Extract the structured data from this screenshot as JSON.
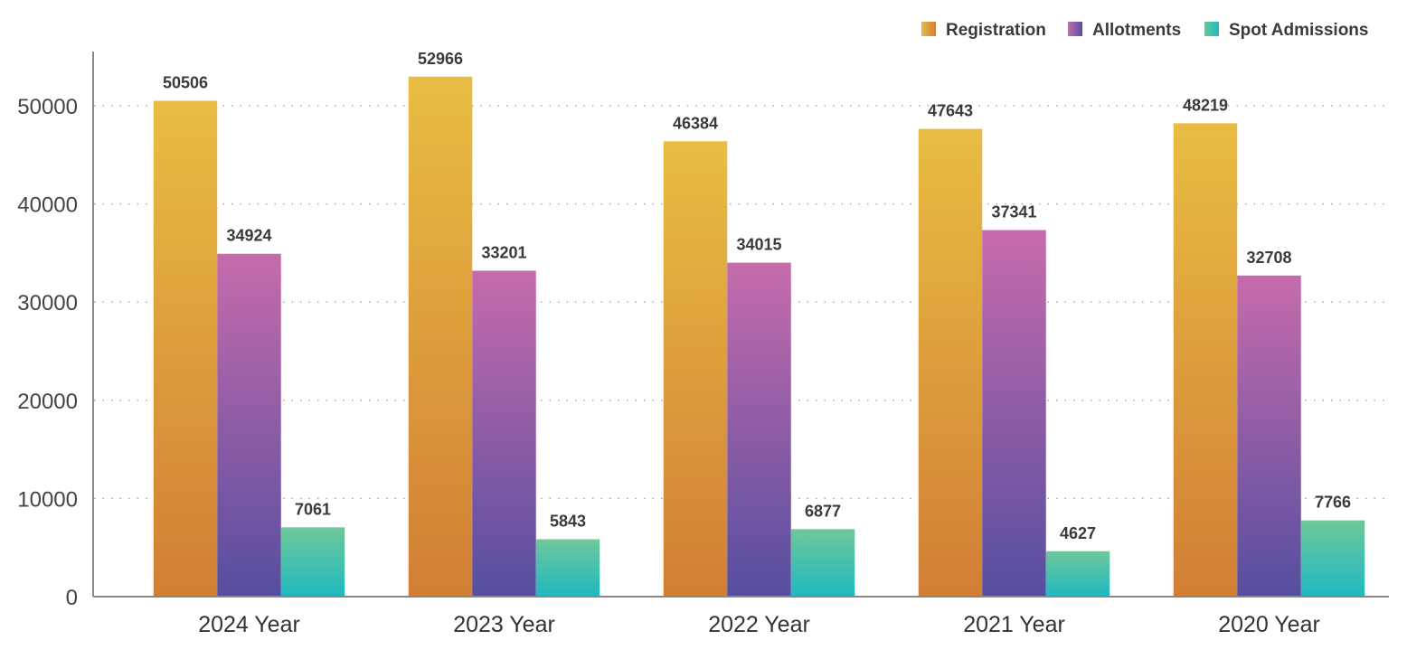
{
  "chart_data": {
    "type": "bar",
    "title": "",
    "xlabel": "",
    "ylabel": "",
    "categories": [
      "2024 Year",
      "2023 Year",
      "2022 Year",
      "2021 Year",
      "2020 Year"
    ],
    "series": [
      {
        "name": "Registration",
        "values": [
          50506,
          52966,
          46384,
          47643,
          48219
        ],
        "color_top": "#e8bd42",
        "color_bottom": "#d27e35"
      },
      {
        "name": "Allotments",
        "values": [
          34924,
          33201,
          34015,
          37341,
          32708
        ],
        "color_top": "#c66bab",
        "color_bottom": "#554ea0"
      },
      {
        "name": "Spot Admissions",
        "values": [
          7061,
          5843,
          6877,
          4627,
          7766
        ],
        "color_top": "#6fc89a",
        "color_bottom": "#1fb8c0"
      }
    ],
    "yticks": [
      "0",
      "10000",
      "20000",
      "30000",
      "40000",
      "50000"
    ],
    "ytick_values": [
      0,
      10000,
      20000,
      30000,
      40000,
      50000
    ],
    "ylim": [
      0,
      55500
    ],
    "grid": true,
    "grid_style": "dotted",
    "legend_position": "top-right",
    "data_labels": true
  }
}
